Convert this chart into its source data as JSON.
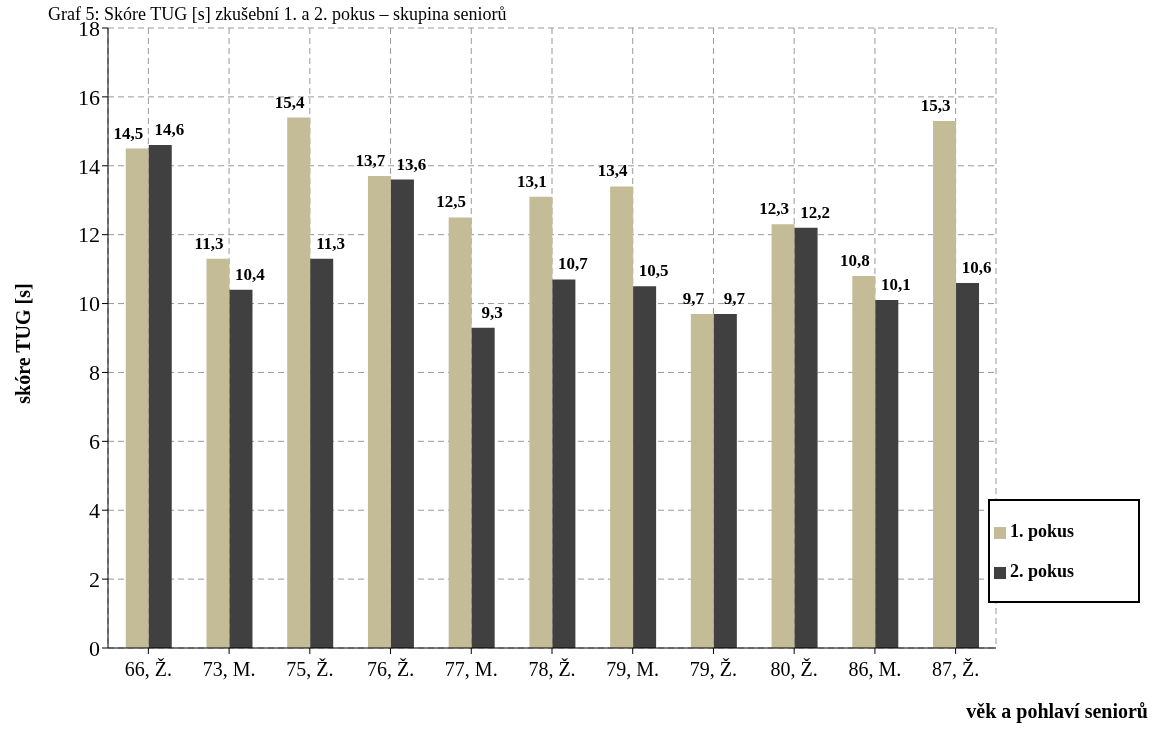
{
  "chart_data": {
    "type": "bar",
    "title": "Graf 5: Skóre TUG [s] zkušební 1. a 2. pokus – skupina seniorů",
    "xlabel": "věk a pohlaví seniorů",
    "ylabel": "skóre TUG [s]",
    "categories": [
      "66, Ž.",
      "73, M.",
      "75, Ž.",
      "76, Ž.",
      "77, M.",
      "78, Ž.",
      "79, M.",
      "79, Ž.",
      "80, Ž.",
      "86, M.",
      "87, Ž."
    ],
    "series": [
      {
        "name": "1. pokus",
        "color": "#c4bc96",
        "values": [
          14.5,
          11.3,
          15.4,
          13.7,
          12.5,
          13.1,
          13.4,
          9.7,
          12.3,
          10.8,
          15.3
        ],
        "value_labels": [
          "14,5",
          "11,3",
          "15,4",
          "13,7",
          "12,5",
          "13,1",
          "13,4",
          "9,7",
          "12,3",
          "10,8",
          "15,3"
        ]
      },
      {
        "name": "2. pokus",
        "color": "#404040",
        "values": [
          14.6,
          10.4,
          11.3,
          13.6,
          9.3,
          10.7,
          10.5,
          9.7,
          12.2,
          10.1,
          10.6
        ],
        "value_labels": [
          "14,6",
          "10,4",
          "11,3",
          "13,6",
          "9,3",
          "10,7",
          "10,5",
          "9,7",
          "12,2",
          "10,1",
          "10,6"
        ]
      }
    ],
    "ylim": [
      0,
      18
    ],
    "yticks": [
      0,
      2,
      4,
      6,
      8,
      10,
      12,
      14,
      16,
      18
    ],
    "grid": true,
    "legend": "bottom right"
  }
}
